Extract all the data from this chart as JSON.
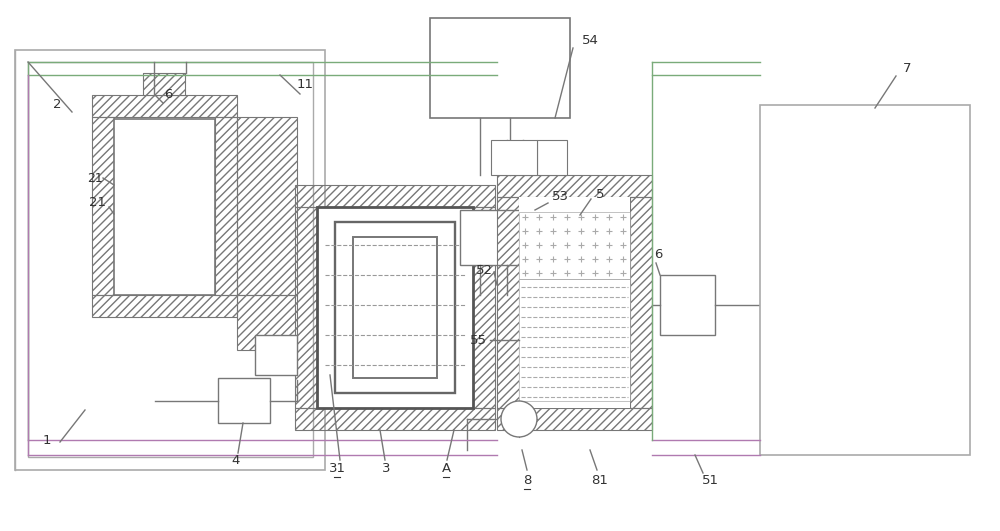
{
  "bg_color": "#ffffff",
  "lc": "#777777",
  "lc_dark": "#555555",
  "green_line": "#7aab7a",
  "purple_line": "#b07ab0",
  "label_color": "#333333",
  "figsize": [
    10.0,
    5.31
  ],
  "dpi": 100
}
